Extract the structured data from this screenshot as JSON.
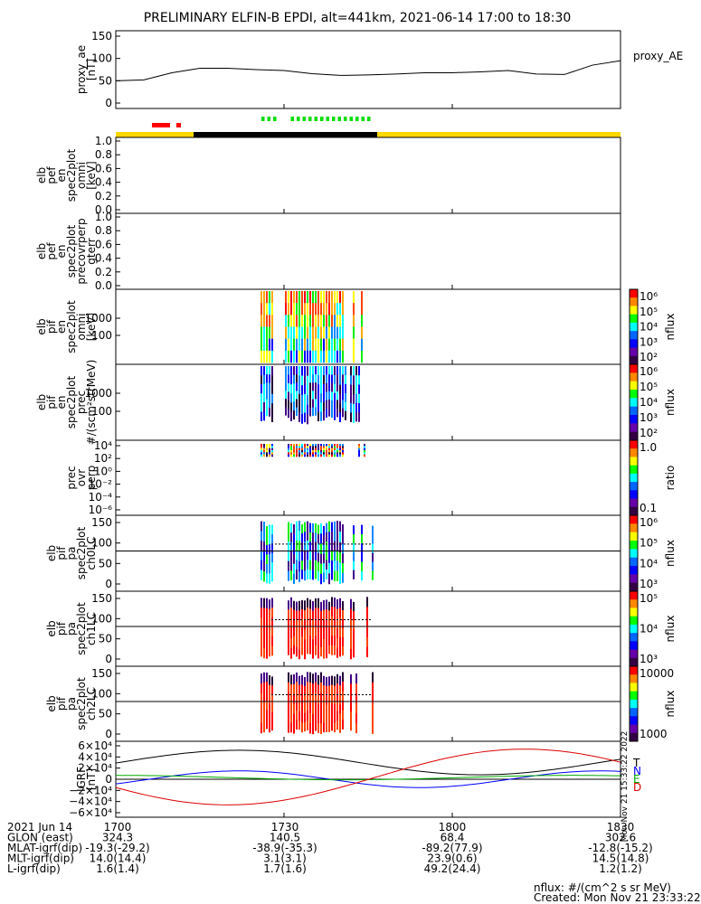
{
  "title": "PRELIMINARY ELFIN-B EPDI, alt=441km, 2021-06-14 17:00 to 18:30",
  "colors": {
    "day_bar": "#ffd700",
    "night_bar": "#000000",
    "science_red": "#ff0000",
    "science_green": "#00dd00"
  },
  "chart_data": [
    {
      "type": "line",
      "name": "proxy_ae",
      "ylabel_lines": [
        "proxy_ae",
        "[nT]"
      ],
      "yticks": [
        "150",
        "100",
        "50",
        "0"
      ],
      "ylim": [
        0,
        150
      ],
      "legend": "proxy_AE",
      "x_minutes": [
        0,
        5,
        10,
        15,
        20,
        25,
        30,
        35,
        40,
        45,
        50,
        55,
        60,
        65,
        70,
        75,
        80,
        85,
        90
      ],
      "values": [
        50,
        52,
        68,
        78,
        78,
        75,
        73,
        66,
        62,
        63,
        65,
        68,
        68,
        70,
        73,
        65,
        64,
        85,
        95
      ]
    },
    {
      "type": "heatmap",
      "name": "elb_pef_en_spec2plot_omni",
      "ylabel_lines": [
        "elb",
        "pef",
        "en",
        "spec2plot",
        "omni",
        "[keV]"
      ],
      "yticks": [
        "1.0",
        "0.8",
        "0.6",
        "0.4",
        "0.2",
        "0.0"
      ]
    },
    {
      "type": "heatmap",
      "name": "elb_pef_en_spec2plot_precovrperp_gterr",
      "ylabel_lines": [
        "elb",
        "pef",
        "en",
        "spec2plot",
        "precovrperp",
        "gterr"
      ],
      "yticks": [
        "1.0",
        "0.8",
        "0.6",
        "0.4",
        "0.2",
        "0.0"
      ]
    },
    {
      "type": "heatmap",
      "name": "elb_pif_en_spec2plot_omni",
      "ylabel_lines": [
        "elb",
        "pif",
        "en",
        "spec2plot",
        "omni",
        "[keV]"
      ],
      "yticks": [
        "1000",
        "100"
      ],
      "colorbar": {
        "label": "nflux",
        "ticks": [
          "10⁶",
          "10⁵",
          "10⁴",
          "10³",
          "10²"
        ]
      }
    },
    {
      "type": "heatmap",
      "name": "elb_pif_en_spec2plot_prec",
      "ylabel_lines": [
        "elb",
        "pif",
        "en",
        "spec2plot",
        "prec",
        "#/(scm²strMeV)"
      ],
      "yticks": [
        "1000",
        "100"
      ],
      "colorbar": {
        "label": "nflux",
        "ticks": [
          "10⁶",
          "10⁵",
          "10⁴",
          "10³",
          "10²"
        ]
      }
    },
    {
      "type": "heatmap",
      "name": "prec_ovr_perp",
      "ylabel_lines": [
        "prec",
        "ovr",
        "perp"
      ],
      "yticks": [
        "10⁴",
        "10²",
        "10⁰",
        "10⁻²",
        "10⁻⁴",
        "10⁻⁶"
      ],
      "colorbar": {
        "label": "ratio",
        "ticks": [
          "1.0",
          "0.1"
        ]
      }
    },
    {
      "type": "heatmap",
      "name": "elb_pif_pa_spec2plot_ch0LC",
      "ylabel_lines": [
        "elb",
        "pif",
        "pa",
        "spec2plot",
        "ch0LC"
      ],
      "yticks": [
        "150",
        "100",
        "50",
        "0"
      ],
      "colorbar": {
        "label": "nflux",
        "ticks": [
          "10⁶",
          "10⁵",
          "10⁴",
          "10³"
        ]
      }
    },
    {
      "type": "heatmap",
      "name": "elb_pif_pa_spec2plot_ch1LC",
      "ylabel_lines": [
        "elb",
        "pif",
        "pa",
        "spec2plot",
        "ch1LC"
      ],
      "yticks": [
        "150",
        "100",
        "50",
        "0"
      ],
      "colorbar": {
        "label": "nflux",
        "ticks": [
          "10⁵",
          "10⁴",
          "10³"
        ]
      }
    },
    {
      "type": "heatmap",
      "name": "elb_pif_pa_spec2plot_ch2LC",
      "ylabel_lines": [
        "elb",
        "pif",
        "pa",
        "spec2plot",
        "ch2LC"
      ],
      "yticks": [
        "150",
        "100",
        "50",
        "0"
      ],
      "colorbar": {
        "label": "nflux",
        "ticks": [
          "10000",
          "1000"
        ]
      }
    },
    {
      "type": "line",
      "name": "igrf",
      "ylabel_lines": [
        "IGRF",
        "[nT]"
      ],
      "yticks": [
        "6×10⁴",
        "4×10⁴",
        "2×10⁴",
        "0",
        "−2×10⁴",
        "−4×10⁴",
        "−6×10⁴"
      ],
      "ylim": [
        -60000,
        60000
      ],
      "legend": [
        "T",
        "N",
        "E",
        "D"
      ],
      "vertical_text": "Mon Nov 21 15:33:22 2022"
    }
  ],
  "footer": {
    "rows": [
      {
        "label": "2021 Jun 14",
        "values": [
          "1700",
          "1730",
          "1800",
          "1830"
        ]
      },
      {
        "label": "GLON (east)",
        "values": [
          "324.3",
          "140.5",
          "68.4",
          "302.6"
        ]
      },
      {
        "label": "MLAT-igrf(dip)",
        "values": [
          "-19.3(-29.2)",
          "-38.9(-35.3)",
          "-89.2(77.9)",
          "-12.8(-15.2)"
        ]
      },
      {
        "label": "MLT-igrf(dip)",
        "values": [
          "14.0(14.4)",
          "3.1(3.1)",
          "23.9(0.6)",
          "14.5(14.8)"
        ]
      },
      {
        "label": "L-igrf(dip)",
        "values": [
          "1.6(1.4)",
          "1.7(1.6)",
          "49.2(24.4)",
          "1.2(1.2)"
        ]
      }
    ],
    "nflux_units": "nflux: #/(cm^2 s sr MeV)",
    "created": "Created: Mon Nov 21 23:33:22 2022"
  }
}
